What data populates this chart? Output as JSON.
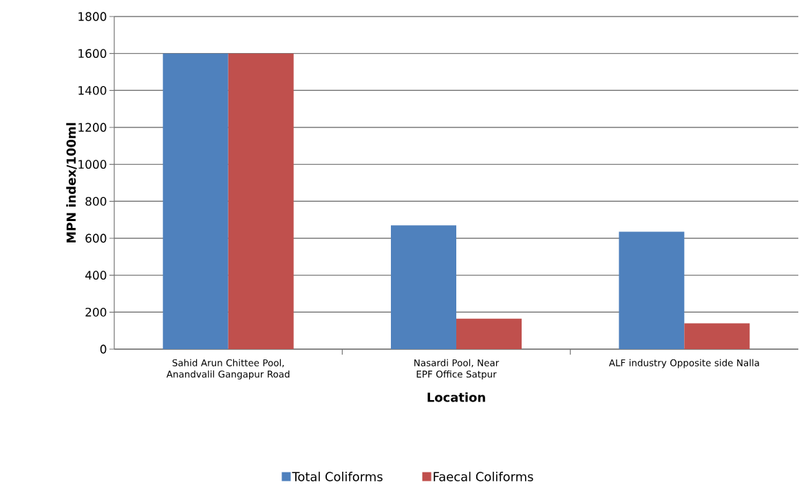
{
  "chart_data": {
    "type": "bar",
    "xlabel": "Location",
    "ylabel": "MPN index/100ml",
    "categories": [
      "Sahid Arun Chittee Pool, Anandvalil Gangapur Road",
      "Nasardi Pool, Near EPF Office Satpur",
      "ALF industry Opposite side Nalla"
    ],
    "series": [
      {
        "name": "Total Coliforms",
        "color": "#4f81bd",
        "values": [
          1600,
          670,
          635
        ]
      },
      {
        "name": "Faecal Coliforms",
        "color": "#c0504d",
        "values": [
          1600,
          165,
          140
        ]
      }
    ],
    "ylim": [
      0,
      1800
    ],
    "yticks": [
      0,
      200,
      400,
      600,
      800,
      1000,
      1200,
      1400,
      1600,
      1800
    ],
    "grid": "y",
    "legend": "bottom"
  }
}
